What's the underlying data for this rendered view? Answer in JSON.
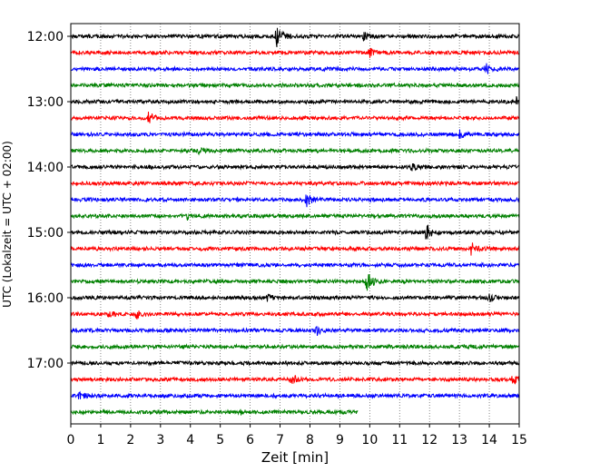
{
  "chart_data": {
    "type": "line",
    "title": "",
    "xlabel": "Zeit  [min]",
    "ylabel": "UTC (Lokalzeit = UTC + 02:00)",
    "xlim": [
      0,
      15
    ],
    "x_ticks": [
      0,
      1,
      2,
      3,
      4,
      5,
      6,
      7,
      8,
      9,
      10,
      11,
      12,
      13,
      14,
      15
    ],
    "y_ticks": [
      "12:00",
      "13:00",
      "14:00",
      "15:00",
      "16:00",
      "17:00"
    ],
    "grid": "vertical dotted",
    "legend": "none",
    "trace_colors": [
      "#000000",
      "#ff0000",
      "#0000ff",
      "#008000"
    ],
    "traces": [
      {
        "start": "12:00",
        "color": "#000000",
        "x_end": 15,
        "events": [
          {
            "t": 6.9,
            "amp": 1.0
          },
          {
            "t": 9.8,
            "amp": 0.25
          }
        ]
      },
      {
        "start": "12:15",
        "color": "#ff0000",
        "x_end": 15,
        "events": [
          {
            "t": 10.0,
            "amp": 0.3
          }
        ]
      },
      {
        "start": "12:30",
        "color": "#0000ff",
        "x_end": 15,
        "events": [
          {
            "t": 13.9,
            "amp": 0.35
          }
        ]
      },
      {
        "start": "12:45",
        "color": "#008000",
        "x_end": 15,
        "events": []
      },
      {
        "start": "13:00",
        "color": "#000000",
        "x_end": 15,
        "events": [
          {
            "t": 14.9,
            "amp": 0.3
          }
        ]
      },
      {
        "start": "13:15",
        "color": "#ff0000",
        "x_end": 15,
        "events": [
          {
            "t": 2.6,
            "amp": 0.4
          }
        ]
      },
      {
        "start": "13:30",
        "color": "#0000ff",
        "x_end": 15,
        "events": [
          {
            "t": 13.0,
            "amp": 0.25
          }
        ]
      },
      {
        "start": "13:45",
        "color": "#008000",
        "x_end": 15,
        "events": [
          {
            "t": 4.3,
            "amp": 0.2
          }
        ]
      },
      {
        "start": "14:00",
        "color": "#000000",
        "x_end": 15,
        "events": [
          {
            "t": 11.4,
            "amp": 0.2
          }
        ]
      },
      {
        "start": "14:15",
        "color": "#ff0000",
        "x_end": 15,
        "events": []
      },
      {
        "start": "14:30",
        "color": "#0000ff",
        "x_end": 15,
        "events": [
          {
            "t": 7.9,
            "amp": 0.5
          }
        ]
      },
      {
        "start": "14:45",
        "color": "#008000",
        "x_end": 15,
        "events": [
          {
            "t": 3.9,
            "amp": 0.2
          }
        ]
      },
      {
        "start": "15:00",
        "color": "#000000",
        "x_end": 15,
        "events": [
          {
            "t": 11.9,
            "amp": 0.55
          }
        ]
      },
      {
        "start": "15:15",
        "color": "#ff0000",
        "x_end": 15,
        "events": [
          {
            "t": 13.4,
            "amp": 0.45
          }
        ]
      },
      {
        "start": "15:30",
        "color": "#0000ff",
        "x_end": 15,
        "events": []
      },
      {
        "start": "15:45",
        "color": "#008000",
        "x_end": 15,
        "events": [
          {
            "t": 9.9,
            "amp": 0.85
          }
        ]
      },
      {
        "start": "16:00",
        "color": "#000000",
        "x_end": 15,
        "events": [
          {
            "t": 6.6,
            "amp": 0.25
          },
          {
            "t": 14.0,
            "amp": 0.3
          }
        ]
      },
      {
        "start": "16:15",
        "color": "#ff0000",
        "x_end": 15,
        "events": [
          {
            "t": 1.3,
            "amp": 0.25
          },
          {
            "t": 2.2,
            "amp": 0.25
          }
        ]
      },
      {
        "start": "16:30",
        "color": "#0000ff",
        "x_end": 15,
        "events": [
          {
            "t": 8.2,
            "amp": 0.45
          }
        ]
      },
      {
        "start": "16:45",
        "color": "#008000",
        "x_end": 15,
        "events": []
      },
      {
        "start": "17:00",
        "color": "#000000",
        "x_end": 15,
        "events": []
      },
      {
        "start": "17:15",
        "color": "#ff0000",
        "x_end": 15,
        "events": [
          {
            "t": 7.4,
            "amp": 0.3
          },
          {
            "t": 14.8,
            "amp": 0.35
          }
        ]
      },
      {
        "start": "17:30",
        "color": "#0000ff",
        "x_end": 15,
        "events": [
          {
            "t": 0.3,
            "amp": 0.25
          }
        ]
      },
      {
        "start": "17:45",
        "color": "#008000",
        "x_end": 9.6,
        "events": [
          {
            "t": 5.7,
            "amp": 0.15
          }
        ]
      }
    ]
  }
}
